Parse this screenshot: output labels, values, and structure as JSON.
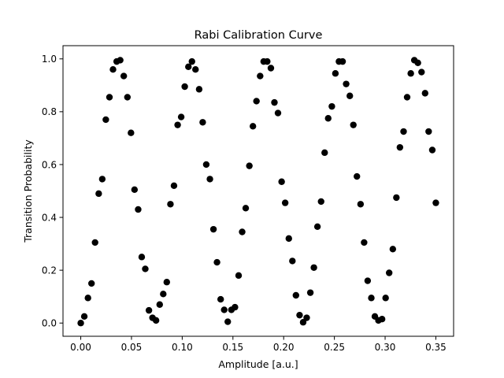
{
  "chart_data": {
    "type": "scatter",
    "title": "Rabi Calibration Curve",
    "xlabel": "Amplitude [a.u.]",
    "ylabel": "Transition Probability",
    "xlim": [
      -0.0175,
      0.3675
    ],
    "ylim": [
      -0.05,
      1.05
    ],
    "xticks": [
      0.0,
      0.05,
      0.1,
      0.15,
      0.2,
      0.25,
      0.3,
      0.35
    ],
    "xtick_labels": [
      "0.00",
      "0.05",
      "0.10",
      "0.15",
      "0.20",
      "0.25",
      "0.30",
      "0.35"
    ],
    "yticks": [
      0.0,
      0.2,
      0.4,
      0.6,
      0.8,
      1.0
    ],
    "ytick_labels": [
      "0.0",
      "0.2",
      "0.4",
      "0.6",
      "0.8",
      "1.0"
    ],
    "grid": false,
    "marker_color": "#000000",
    "series": [
      {
        "x": [
          0.0,
          0.0035,
          0.0071,
          0.0106,
          0.0141,
          0.0177,
          0.0212,
          0.0247,
          0.0283,
          0.0318,
          0.0354,
          0.0389,
          0.0424,
          0.046,
          0.0495,
          0.053,
          0.0566,
          0.0601,
          0.0636,
          0.0672,
          0.0707,
          0.0742,
          0.0778,
          0.0813,
          0.0848,
          0.0884,
          0.0919,
          0.0955,
          0.099,
          0.1025,
          0.1061,
          0.1096,
          0.1131,
          0.1167,
          0.1202,
          0.1237,
          0.1273,
          0.1308,
          0.1343,
          0.1379,
          0.1414,
          0.1449,
          0.1485,
          0.152,
          0.1556,
          0.1591,
          0.1626,
          0.1662,
          0.1697,
          0.1732,
          0.1768,
          0.1803,
          0.1838,
          0.1874,
          0.1909,
          0.1944,
          0.198,
          0.2015,
          0.2051,
          0.2086,
          0.2121,
          0.2157,
          0.2192,
          0.2227,
          0.2263,
          0.2298,
          0.2333,
          0.2369,
          0.2404,
          0.2439,
          0.2475,
          0.251,
          0.2545,
          0.2581,
          0.2616,
          0.2652,
          0.2687,
          0.2722,
          0.2758,
          0.2793,
          0.2828,
          0.2864,
          0.2899,
          0.2934,
          0.297,
          0.3005,
          0.304,
          0.3076,
          0.3111,
          0.3146,
          0.3182,
          0.3217,
          0.3253,
          0.3288,
          0.3323,
          0.3359,
          0.3394,
          0.3429,
          0.3465,
          0.35
        ],
        "y": [
          0.0,
          0.025,
          0.095,
          0.15,
          0.305,
          0.49,
          0.545,
          0.77,
          0.855,
          0.96,
          0.99,
          0.995,
          0.935,
          0.855,
          0.72,
          0.505,
          0.43,
          0.25,
          0.205,
          0.048,
          0.02,
          0.01,
          0.07,
          0.11,
          0.155,
          0.45,
          0.52,
          0.75,
          0.78,
          0.895,
          0.97,
          0.99,
          0.96,
          0.885,
          0.76,
          0.6,
          0.545,
          0.355,
          0.23,
          0.09,
          0.05,
          0.005,
          0.05,
          0.06,
          0.18,
          0.345,
          0.435,
          0.595,
          0.745,
          0.84,
          0.935,
          0.99,
          0.99,
          0.965,
          0.835,
          0.795,
          0.535,
          0.455,
          0.32,
          0.235,
          0.105,
          0.03,
          0.003,
          0.02,
          0.115,
          0.21,
          0.365,
          0.46,
          0.645,
          0.775,
          0.82,
          0.945,
          0.99,
          0.99,
          0.905,
          0.86,
          0.75,
          0.555,
          0.45,
          0.305,
          0.16,
          0.095,
          0.025,
          0.01,
          0.015,
          0.095,
          0.19,
          0.28,
          0.475,
          0.665,
          0.725,
          0.855,
          0.945,
          0.995,
          0.985,
          0.95,
          0.87,
          0.725,
          0.655,
          0.455
        ]
      }
    ]
  }
}
